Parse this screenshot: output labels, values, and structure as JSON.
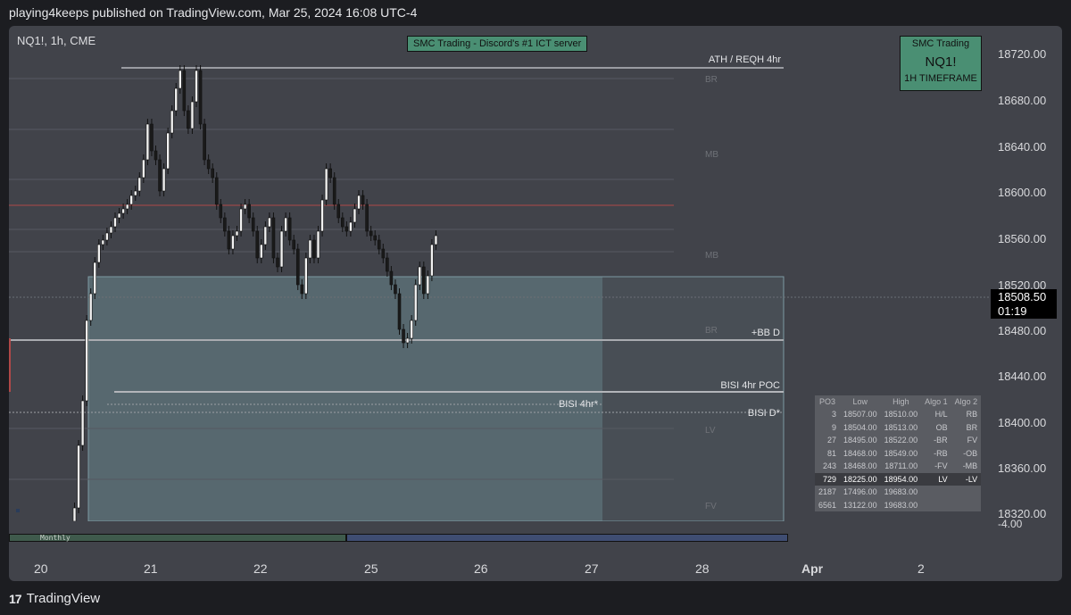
{
  "header": {
    "published": "playing4keeps published on TradingView.com, Mar 25, 2024 16:08 UTC-4"
  },
  "chart": {
    "symbol": "NQ1!, 1h, CME",
    "banner": "SMC Trading - Discord's #1 ICT server",
    "box": {
      "title": "SMC Trading",
      "ticker": "NQ1!",
      "timeframe": "1H TIMEFRAME"
    },
    "y_ticks": [
      "18720.00",
      "18680.00",
      "18640.00",
      "18600.00",
      "18560.00",
      "18520.00",
      "18480.00",
      "18440.00",
      "18400.00",
      "18360.00",
      "18320.00"
    ],
    "y_clipped": "-4.00",
    "last_price": "18508.50",
    "countdown": "01:19",
    "x_ticks": [
      "20",
      "21",
      "22",
      "25",
      "26",
      "27",
      "28",
      "Apr",
      "2"
    ],
    "levels": {
      "ath": "ATH / REQH 4hr",
      "bbd": "+BB D",
      "poc": "BISI 4hr POC",
      "bisi4": "BISI 4hr*",
      "bisid": "BISI D*",
      "br1": "BR",
      "mb1": "MB",
      "mb2": "MB",
      "br2": "BR",
      "lv": "LV",
      "fv": "FV"
    },
    "monthly_label": "Monthly",
    "colors": {
      "background": "#41434a",
      "banner": "#4a8f73",
      "monthly_left": "#3f5a4c",
      "monthly_right": "#3f4d72"
    }
  },
  "table": {
    "headers": [
      "PO3",
      "Low",
      "High",
      "Algo 1",
      "Algo 2"
    ],
    "rows": [
      [
        "3",
        "18507.00",
        "18510.00",
        "H/L",
        "RB"
      ],
      [
        "9",
        "18504.00",
        "18513.00",
        "OB",
        "BR"
      ],
      [
        "27",
        "18495.00",
        "18522.00",
        "-BR",
        "FV"
      ],
      [
        "81",
        "18468.00",
        "18549.00",
        "-RB",
        "-OB"
      ],
      [
        "243",
        "18468.00",
        "18711.00",
        "-FV",
        "-MB"
      ],
      [
        "729",
        "18225.00",
        "18954.00",
        "LV",
        "-LV"
      ],
      [
        "2187",
        "17496.00",
        "19683.00",
        "",
        ""
      ],
      [
        "6561",
        "13122.00",
        "19683.00",
        "",
        ""
      ]
    ]
  },
  "footer": {
    "brand": "TradingView"
  }
}
